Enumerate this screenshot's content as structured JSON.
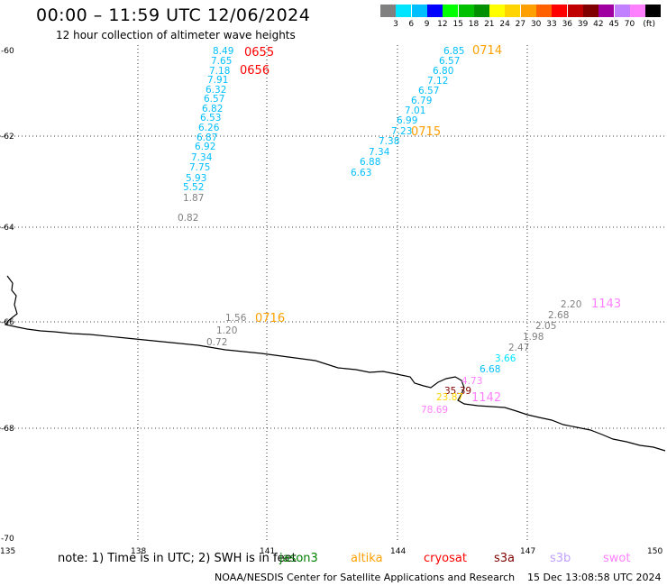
{
  "header": {
    "title": "00:00 – 11:59 UTC 12/06/2024",
    "subtitle": "12 hour collection of altimeter wave heights"
  },
  "legend": {
    "labels": [
      "3",
      "6",
      "9",
      "12",
      "15",
      "18",
      "21",
      "24",
      "27",
      "30",
      "33",
      "36",
      "39",
      "42",
      "45",
      "70"
    ],
    "unit": "(ft)",
    "colors": [
      "#808080",
      "#00e5ff",
      "#00bfff",
      "#0000ff",
      "#00ff00",
      "#00c000",
      "#009000",
      "#ffff00",
      "#ffd400",
      "#ffa000",
      "#ff6000",
      "#ff0000",
      "#c00000",
      "#800000",
      "#a000a0",
      "#c080ff",
      "#ff80ff",
      "#000000"
    ]
  },
  "axes": {
    "y_labels": [
      "-60",
      "-62",
      "-64",
      "-66",
      "-68",
      "-70"
    ],
    "x_labels": [
      "135",
      "138",
      "141",
      "144",
      "147",
      "150"
    ]
  },
  "track_values": [
    {
      "t": "8.49",
      "c": "#00bfff"
    },
    {
      "t": "7.65",
      "c": "#00bfff"
    },
    {
      "t": "7.18",
      "c": "#00bfff"
    },
    {
      "t": "7.91",
      "c": "#00bfff"
    },
    {
      "t": "6.32",
      "c": "#00bfff"
    },
    {
      "t": "6.57",
      "c": "#00bfff"
    },
    {
      "t": "6.82",
      "c": "#00bfff"
    },
    {
      "t": "6.53",
      "c": "#00bfff"
    },
    {
      "t": "6.26",
      "c": "#00bfff"
    },
    {
      "t": "6.87",
      "c": "#00bfff"
    },
    {
      "t": "6.92",
      "c": "#00bfff"
    },
    {
      "t": "7.34",
      "c": "#00bfff"
    },
    {
      "t": "7.75",
      "c": "#00bfff"
    },
    {
      "t": "5.93",
      "c": "#00bfff"
    },
    {
      "t": "5.52",
      "c": "#00bfff"
    },
    {
      "t": "1.87",
      "c": "#808080"
    },
    {
      "t": "0.82",
      "c": "#808080"
    },
    {
      "t": "6.85",
      "c": "#00bfff"
    },
    {
      "t": "6.57",
      "c": "#00bfff"
    },
    {
      "t": "6.80",
      "c": "#00bfff"
    },
    {
      "t": "7.12",
      "c": "#00bfff"
    },
    {
      "t": "6.57",
      "c": "#00bfff"
    },
    {
      "t": "6.79",
      "c": "#00bfff"
    },
    {
      "t": "7.01",
      "c": "#00bfff"
    },
    {
      "t": "6.99",
      "c": "#00bfff"
    },
    {
      "t": "7.23",
      "c": "#00bfff"
    },
    {
      "t": "7.38",
      "c": "#00bfff"
    },
    {
      "t": "7.34",
      "c": "#00bfff"
    },
    {
      "t": "6.88",
      "c": "#00bfff"
    },
    {
      "t": "6.63",
      "c": "#00bfff"
    },
    {
      "t": "1.56",
      "c": "#808080"
    },
    {
      "t": "1.20",
      "c": "#808080"
    },
    {
      "t": "0.72",
      "c": "#808080"
    },
    {
      "t": "2.20",
      "c": "#808080"
    },
    {
      "t": "2.68",
      "c": "#808080"
    },
    {
      "t": "2.05",
      "c": "#808080"
    },
    {
      "t": "1.98",
      "c": "#808080"
    },
    {
      "t": "2.47",
      "c": "#808080"
    },
    {
      "t": "3.66",
      "c": "#00e5ff"
    },
    {
      "t": "6.68",
      "c": "#00bfff"
    },
    {
      "t": "4.73",
      "c": "#ff80ff"
    },
    {
      "t": "35.39",
      "c": "#800000"
    },
    {
      "t": "23.87",
      "c": "#ffd400"
    },
    {
      "t": "78.69",
      "c": "#ff80ff"
    }
  ],
  "pass_times": [
    {
      "t": "0655",
      "c": "#ff0000"
    },
    {
      "t": "0656",
      "c": "#ff0000"
    },
    {
      "t": "0714",
      "c": "#ffa000"
    },
    {
      "t": "0715",
      "c": "#ffa000"
    },
    {
      "t": "0716",
      "c": "#ffa000"
    },
    {
      "t": "1143",
      "c": "#ff80ff"
    },
    {
      "t": "1142",
      "c": "#ff80ff"
    }
  ],
  "note": "note:  1) Time is in UTC;  2) SWH is in feet",
  "missions": [
    {
      "name": "jason3",
      "color": "#008000"
    },
    {
      "name": "altika",
      "color": "#ffa000"
    },
    {
      "name": "cryosat",
      "color": "#ff0000"
    },
    {
      "name": "s3a",
      "color": "#800000"
    },
    {
      "name": "s3b",
      "color": "#c0a0ff"
    },
    {
      "name": "swot",
      "color": "#ff80ff"
    }
  ],
  "footer": {
    "credit": "NOAA/NESDIS Center for Satellite Applications and Research",
    "timestamp": "15 Dec 13:08:58 UTC 2024"
  }
}
